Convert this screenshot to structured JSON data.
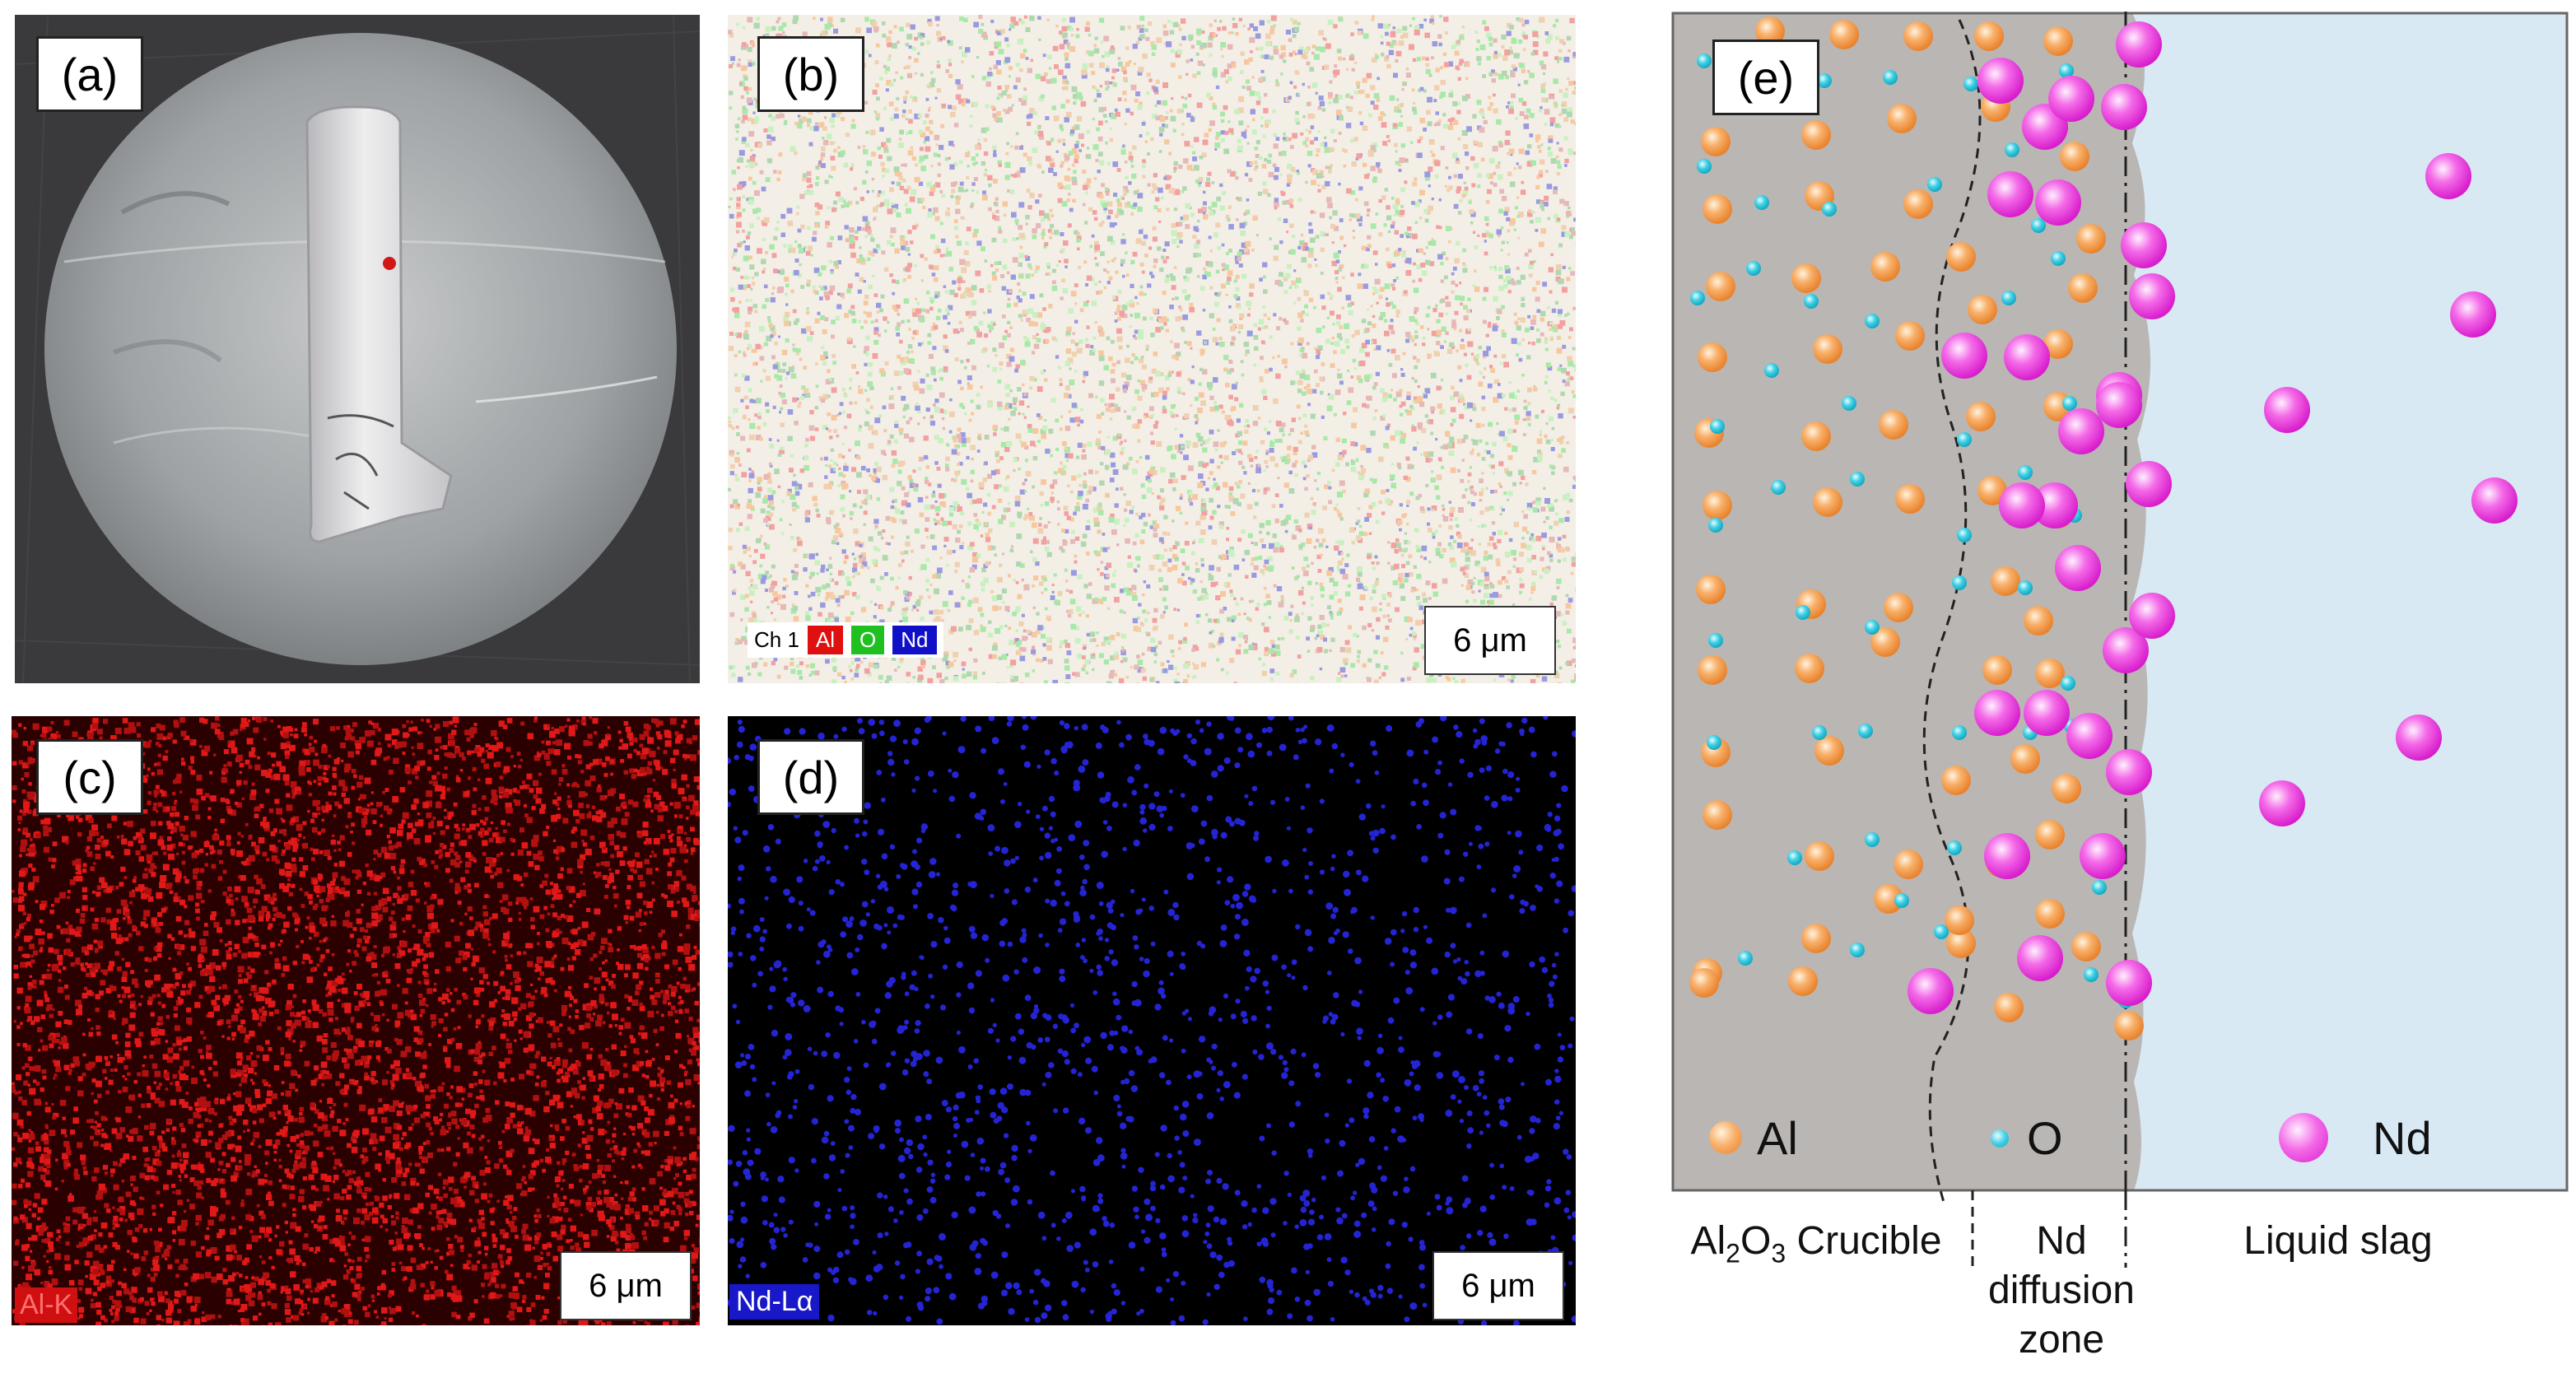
{
  "panels": {
    "a": {
      "label": "(a)"
    },
    "b": {
      "label": "(b)",
      "channel_label": "Ch 1",
      "elements": [
        "Al",
        "O",
        "Nd"
      ],
      "scale": "6 μm",
      "colors": {
        "Al": "#e01010",
        "O": "#20c020",
        "Nd": "#1010c8"
      }
    },
    "c": {
      "label": "(c)",
      "map_label": "Al-K",
      "scale": "6 μm",
      "color": "#e01818"
    },
    "d": {
      "label": "(d)",
      "map_label": "Nd-Lα",
      "scale": "6 μm",
      "color": "#2020d0"
    },
    "e": {
      "label": "(e)",
      "legend": {
        "al": "Al",
        "o": "O",
        "nd": "Nd"
      },
      "regions": {
        "crucible": "Al2O3 Crucible",
        "crucible_sub": "2",
        "crucible_pre": "Al",
        "crucible_post": "O",
        "crucible_sub2": "3",
        "crucible_tail": " Crucible",
        "diffusion_1": "Nd",
        "diffusion_2": "diffusion",
        "diffusion_3": "zone",
        "slag": "Liquid slag"
      },
      "colors": {
        "crucible": "#bab6b4",
        "slag": "#d9e9f4",
        "al": "#f4a050",
        "o": "#30c8dc",
        "nd": "#f040e0"
      }
    }
  }
}
